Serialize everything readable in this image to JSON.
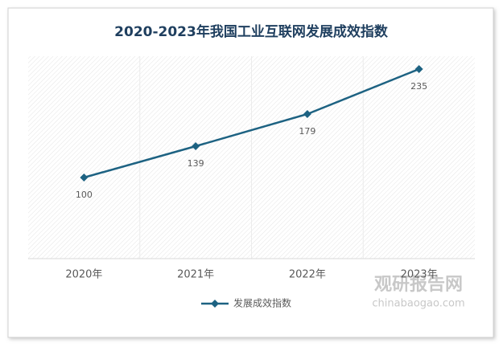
{
  "chart_data": {
    "type": "line",
    "title": "2020-2023年我国工业互联网发展成效指数",
    "categories": [
      "2020年",
      "2021年",
      "2022年",
      "2023年"
    ],
    "series": [
      {
        "name": "发展成效指数",
        "color": "#1d6282",
        "values": [
          100,
          139,
          179,
          235
        ]
      }
    ],
    "ylim": [
      0,
      250
    ]
  },
  "watermark": {
    "title": "观研报告网",
    "url": "chinabaogao.com"
  }
}
